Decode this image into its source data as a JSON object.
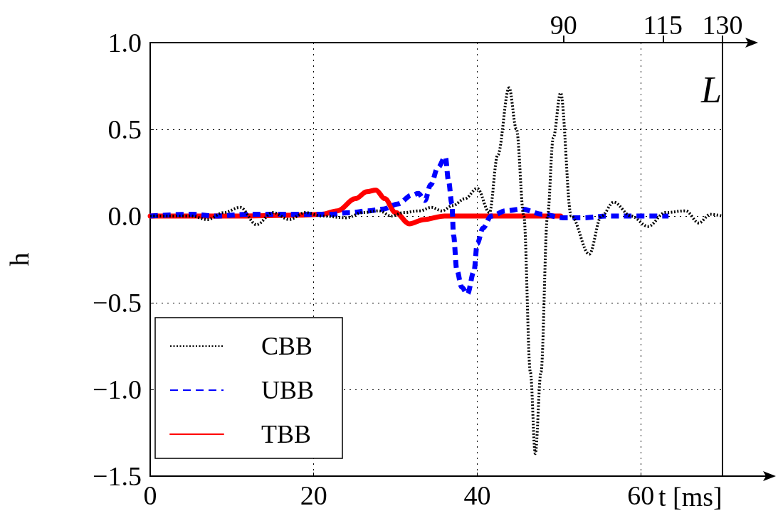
{
  "chart_data": {
    "type": "line",
    "xlabel": "t [ms]",
    "ylabel": "h",
    "x2label": "L",
    "xlim": [
      0,
      70
    ],
    "xticks": [
      0,
      20,
      40,
      60
    ],
    "ylim": [
      -1.5,
      1.0
    ],
    "yticks": [
      {
        "value": -1.5,
        "label": "−1.5"
      },
      {
        "value": -1.0,
        "label": "−1.0"
      },
      {
        "value": -0.5,
        "label": "−0.5"
      },
      {
        "value": 0,
        "label": "0.0"
      },
      {
        "value": 0.5,
        "label": "0.5"
      },
      {
        "value": 1.0,
        "label": "1.0"
      }
    ],
    "x2lim": [
      -14,
      130
    ],
    "x2ticks": [
      90,
      115,
      130
    ],
    "grid": true,
    "legend": "bottom left",
    "marker": "none",
    "series": [
      {
        "name": "CBB",
        "color": "#000000",
        "line_style": "dotted",
        "x": [
          0,
          5,
          7,
          9,
          11,
          13,
          15,
          17,
          19,
          21,
          24,
          26,
          28,
          29.5,
          31,
          33,
          34.4,
          35.7,
          37,
          38.5,
          40,
          41.5,
          42.5,
          43.9,
          44.8,
          45.7,
          46.5,
          47.1,
          47.8,
          48.6,
          49.3,
          50.2,
          51.5,
          53.7,
          55.2,
          56.7,
          58.8,
          60.9,
          63,
          65.5,
          67.1,
          68.5,
          70
        ],
        "values": [
          0,
          0,
          -0.02,
          0.02,
          0.05,
          -0.05,
          0.02,
          -0.02,
          0.02,
          0,
          -0.01,
          0.02,
          0.03,
          0,
          0.02,
          0.03,
          0.05,
          0.03,
          0.06,
          0.1,
          0.16,
          0.02,
          0.35,
          0.74,
          0.5,
          0,
          -0.9,
          -1.37,
          -0.9,
          0,
          0.45,
          0.71,
          0,
          -0.22,
          0,
          0.08,
          0,
          -0.06,
          0.02,
          0.03,
          -0.04,
          0.01,
          0
        ]
      },
      {
        "name": "UBB",
        "color": "#0000ff",
        "line_style": "dashed",
        "x": [
          0,
          5,
          8,
          12,
          18,
          22,
          24.6,
          26.6,
          28.5,
          30.3,
          32,
          32.8,
          33.6,
          34.3,
          35.2,
          36.1,
          36.5,
          36.9,
          37.1,
          37.5,
          38.1,
          38.8,
          39.6,
          40,
          40.7,
          41.7,
          43.5,
          45.4,
          48,
          50.5,
          53,
          56,
          60,
          63.4
        ],
        "values": [
          0,
          0.01,
          0,
          0.01,
          0.01,
          0.01,
          0.02,
          0.03,
          0.04,
          0.07,
          0.12,
          0.13,
          0.09,
          0.18,
          0.28,
          0.34,
          0.2,
          0.07,
          -0.11,
          -0.31,
          -0.41,
          -0.45,
          -0.32,
          -0.16,
          -0.07,
          0,
          0.03,
          0.04,
          0.01,
          -0.01,
          -0.01,
          0,
          0,
          0
        ]
      },
      {
        "name": "TBB",
        "color": "#ff0000",
        "line_style": "solid",
        "x": [
          0,
          10,
          18,
          21,
          22.9,
          25.1,
          26.5,
          27.6,
          28.7,
          30,
          31.7,
          33.5,
          36,
          40,
          50.2
        ],
        "values": [
          0,
          0,
          0.005,
          0.01,
          0.03,
          0.1,
          0.14,
          0.15,
          0.1,
          0.02,
          -0.045,
          -0.02,
          0,
          0,
          0
        ]
      }
    ]
  }
}
